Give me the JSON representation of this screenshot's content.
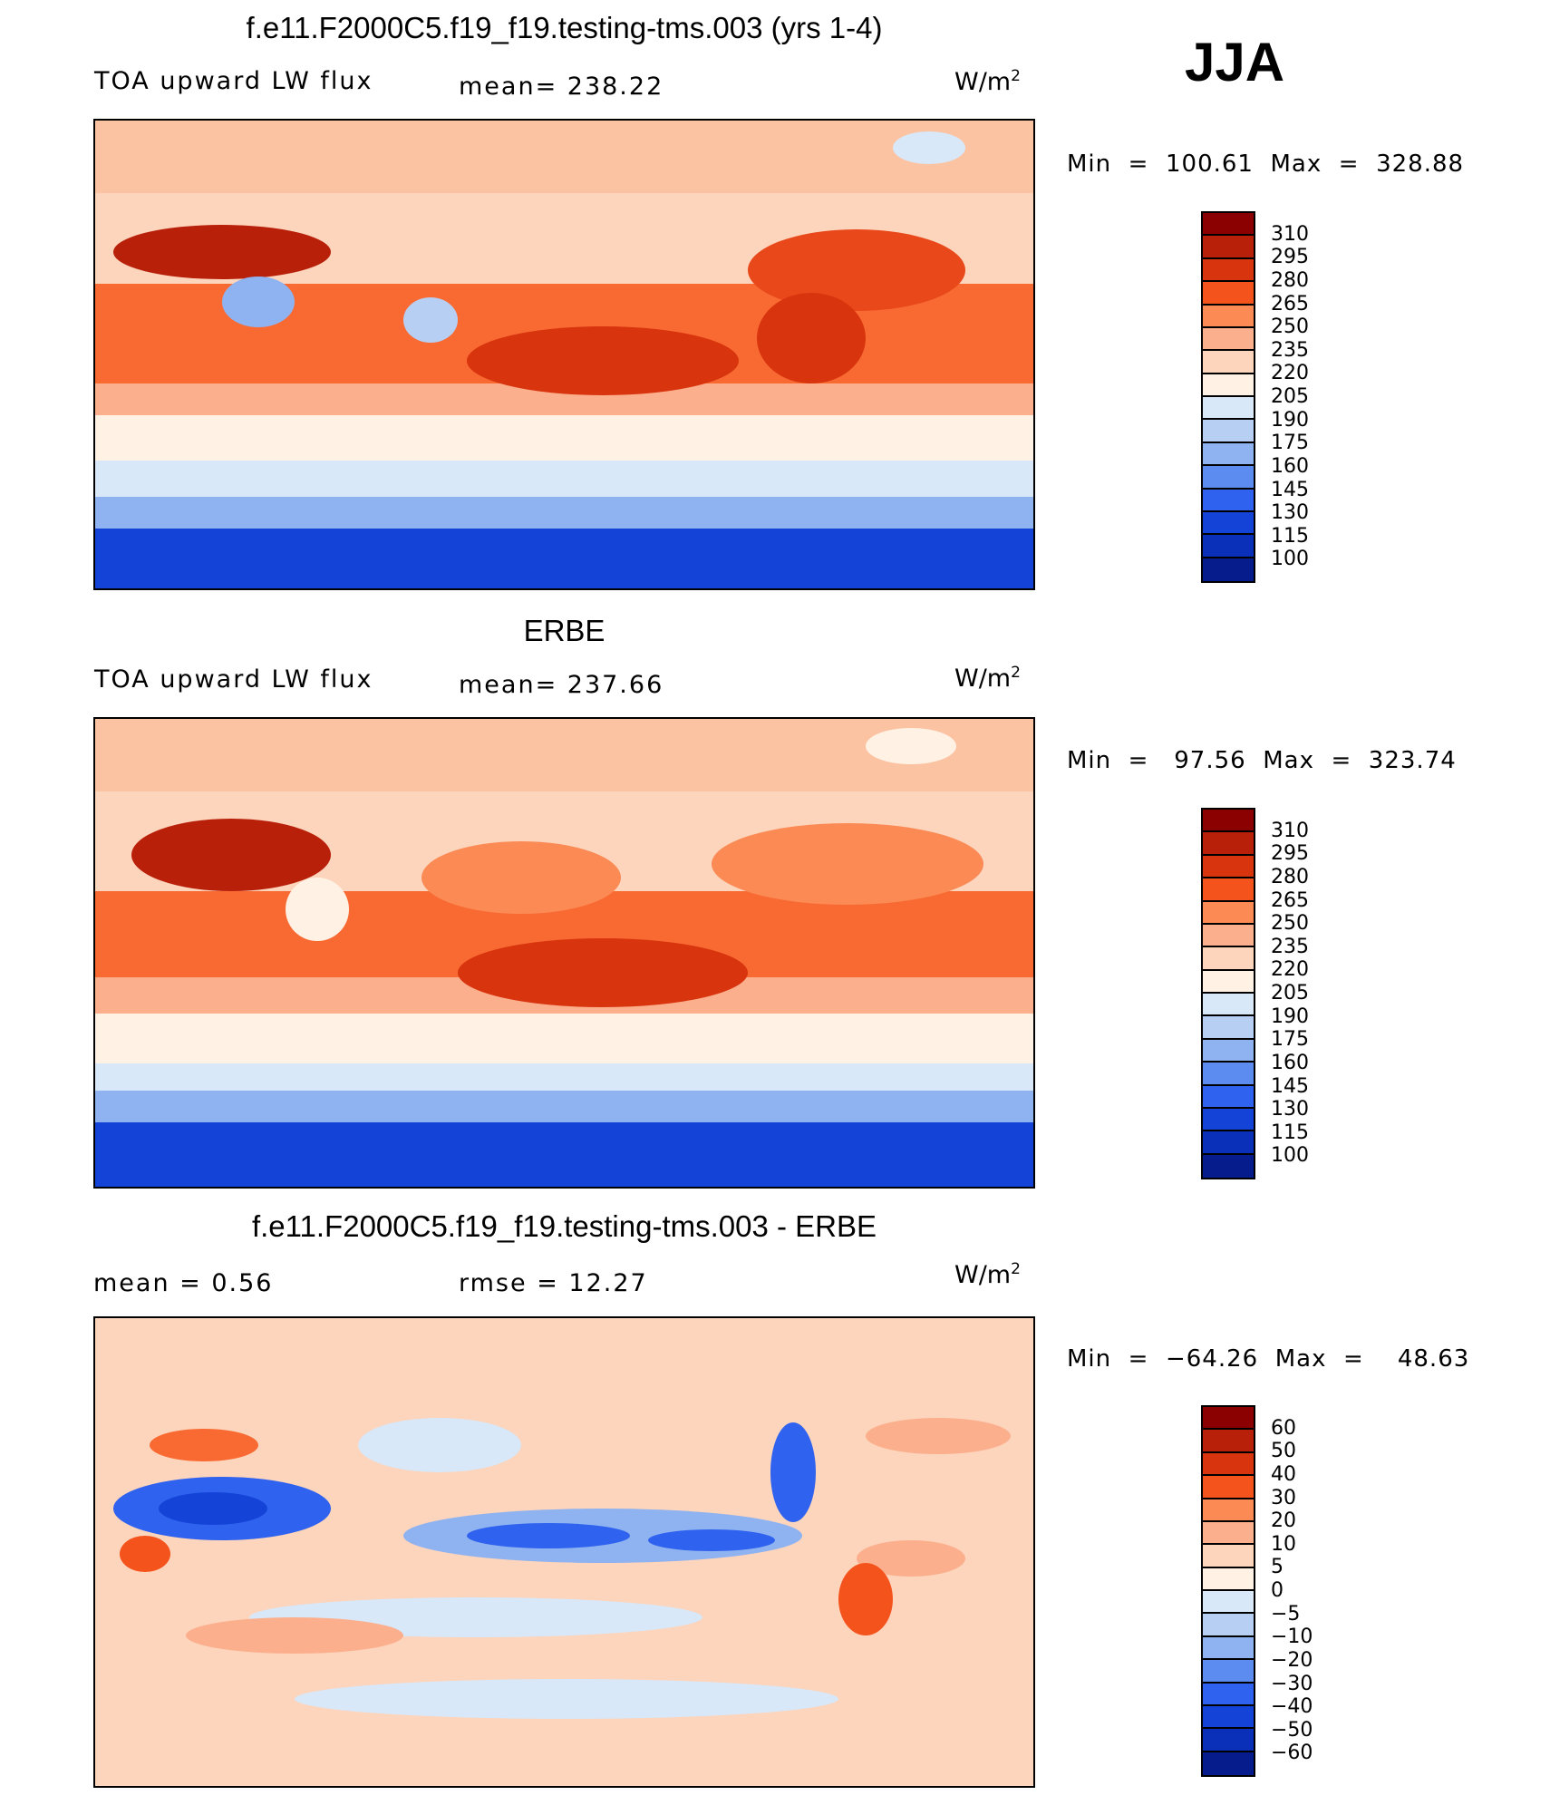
{
  "season": "JJA",
  "panels": [
    {
      "title": "f.e11.F2000C5.f19_f19.testing-tms.003 (yrs 1-4)",
      "left_label": "TOA upward LW flux",
      "center_label": "mean=  238.22",
      "units": "W/m",
      "units_sup": "2",
      "minmax": "Min  =  100.61  Max  =  328.88",
      "colorbar": {
        "colors": [
          "#8b0000",
          "#b8200a",
          "#d8340e",
          "#f4531c",
          "#fb8a55",
          "#fcaf8d",
          "#fdd4bc",
          "#fff2e5",
          "#d8e8f8",
          "#b6cff3",
          "#8fb3f0",
          "#5c8cf0",
          "#2f62ee",
          "#1443d8",
          "#0a2fb8",
          "#061c8c"
        ],
        "ticks": [
          "310",
          "295",
          "280",
          "265",
          "250",
          "235",
          "220",
          "205",
          "190",
          "175",
          "160",
          "145",
          "130",
          "115",
          "100"
        ]
      }
    },
    {
      "title": "ERBE",
      "left_label": "TOA upward LW flux",
      "center_label": "mean=  237.66",
      "units": "W/m",
      "units_sup": "2",
      "minmax": "Min  =   97.56  Max  =  323.74",
      "colorbar": {
        "colors": [
          "#8b0000",
          "#b8200a",
          "#d8340e",
          "#f4531c",
          "#fb8a55",
          "#fcaf8d",
          "#fdd4bc",
          "#fff2e5",
          "#d8e8f8",
          "#b6cff3",
          "#8fb3f0",
          "#5c8cf0",
          "#2f62ee",
          "#1443d8",
          "#0a2fb8",
          "#061c8c"
        ],
        "ticks": [
          "310",
          "295",
          "280",
          "265",
          "250",
          "235",
          "220",
          "205",
          "190",
          "175",
          "160",
          "145",
          "130",
          "115",
          "100"
        ]
      }
    },
    {
      "title": "f.e11.F2000C5.f19_f19.testing-tms.003 - ERBE",
      "left_label": "mean =     0.56",
      "center_label": "rmse  =    12.27",
      "units": "W/m",
      "units_sup": "2",
      "minmax": "Min  =  −64.26  Max  =    48.63",
      "colorbar": {
        "colors": [
          "#8b0000",
          "#b8200a",
          "#d8340e",
          "#f4531c",
          "#fb8a55",
          "#fcaf8d",
          "#fdd4bc",
          "#fff2e5",
          "#d8e8f8",
          "#b6cff3",
          "#8fb3f0",
          "#5c8cf0",
          "#2f62ee",
          "#1443d8",
          "#0a2fb8",
          "#061c8c"
        ],
        "ticks": [
          "60",
          "50",
          "40",
          "30",
          "20",
          "10",
          "5",
          "0",
          "−5",
          "−10",
          "−20",
          "−30",
          "−40",
          "−50",
          "−60"
        ]
      }
    }
  ]
}
